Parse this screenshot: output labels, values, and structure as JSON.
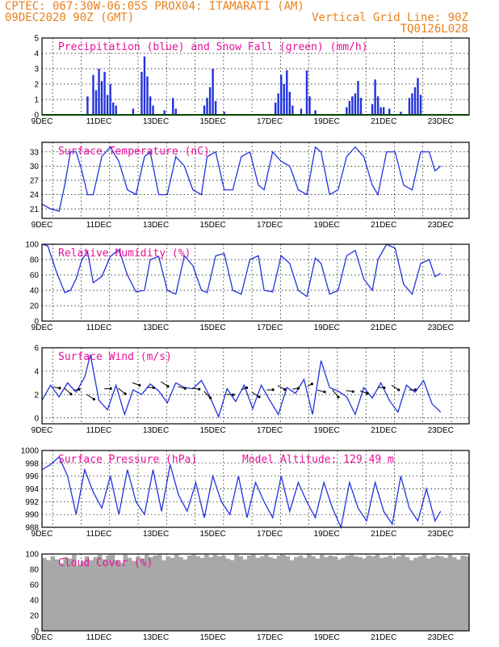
{
  "header": {
    "line1": "CPTEC:  067:30W-06:05S  PROX04: ITAMARATI (AM)",
    "line2_left": "09DEC2020 90Z (GMT)",
    "line2_right": "Vertical Grid Line: 90Z",
    "line3_right": "TQ0126L028"
  },
  "x_labels": [
    "9DEC",
    "11DEC",
    "13DEC",
    "15DEC",
    "17DEC",
    "19DEC",
    "21DEC",
    "23DEC"
  ],
  "colors": {
    "precip": "#2233dd",
    "snow": "#11aa11",
    "line": "#2233dd",
    "cloud": "#a8a8a8",
    "title": "#e8109a",
    "header": "#e8821e"
  },
  "chart_data": [
    {
      "type": "bar",
      "title": "Precipitation (blue) and Snow Fall (green) (mm/h)",
      "x_unit": "days since 9DEC 00Z",
      "ylim": [
        0,
        5
      ],
      "yticks": [
        0,
        1,
        2,
        3,
        4,
        5
      ],
      "series": [
        {
          "name": "Precipitation",
          "color": "#2233dd",
          "points": [
            [
              1.6,
              1.2
            ],
            [
              1.8,
              2.6
            ],
            [
              1.9,
              1.6
            ],
            [
              2.0,
              3.0
            ],
            [
              2.1,
              2.2
            ],
            [
              2.2,
              2.8
            ],
            [
              2.3,
              1.3
            ],
            [
              2.4,
              2.0
            ],
            [
              2.5,
              0.8
            ],
            [
              2.6,
              0.6
            ],
            [
              3.2,
              0.4
            ],
            [
              3.5,
              2.8
            ],
            [
              3.6,
              3.8
            ],
            [
              3.7,
              2.5
            ],
            [
              3.8,
              1.2
            ],
            [
              3.9,
              0.6
            ],
            [
              4.3,
              0.3
            ],
            [
              4.6,
              1.1
            ],
            [
              4.7,
              0.4
            ],
            [
              5.7,
              0.6
            ],
            [
              5.8,
              1.1
            ],
            [
              5.9,
              1.8
            ],
            [
              6.0,
              3.0
            ],
            [
              6.1,
              0.9
            ],
            [
              6.4,
              0.2
            ],
            [
              8.2,
              0.8
            ],
            [
              8.3,
              1.4
            ],
            [
              8.4,
              2.6
            ],
            [
              8.5,
              2.0
            ],
            [
              8.6,
              2.9
            ],
            [
              8.7,
              1.5
            ],
            [
              8.8,
              0.6
            ],
            [
              9.1,
              0.4
            ],
            [
              9.3,
              2.9
            ],
            [
              9.4,
              1.2
            ],
            [
              9.6,
              0.3
            ],
            [
              10.7,
              0.5
            ],
            [
              10.8,
              0.9
            ],
            [
              10.9,
              1.2
            ],
            [
              11.0,
              1.4
            ],
            [
              11.1,
              2.2
            ],
            [
              11.2,
              1.1
            ],
            [
              11.6,
              0.7
            ],
            [
              11.7,
              2.3
            ],
            [
              11.8,
              1.2
            ],
            [
              11.9,
              0.5
            ],
            [
              12.0,
              0.5
            ],
            [
              12.2,
              0.4
            ],
            [
              12.6,
              0.2
            ],
            [
              12.9,
              1.1
            ],
            [
              13.0,
              1.4
            ],
            [
              13.1,
              1.8
            ],
            [
              13.2,
              2.4
            ],
            [
              13.3,
              1.3
            ]
          ]
        },
        {
          "name": "Snow Fall",
          "color": "#11aa11",
          "points": []
        }
      ]
    },
    {
      "type": "line",
      "title": "Surface Temperature (nC)",
      "ylim": [
        19,
        35
      ],
      "yticks": [
        21,
        24,
        27,
        30,
        33
      ],
      "x": [
        0,
        0.3,
        0.6,
        0.8,
        1.0,
        1.2,
        1.4,
        1.6,
        1.8,
        2.1,
        2.4,
        2.7,
        3.0,
        3.3,
        3.6,
        3.8,
        4.1,
        4.4,
        4.7,
        5.0,
        5.3,
        5.6,
        5.8,
        6.1,
        6.4,
        6.7,
        7.0,
        7.3,
        7.6,
        7.8,
        8.1,
        8.4,
        8.7,
        9.0,
        9.3,
        9.6,
        9.8,
        10.1,
        10.4,
        10.7,
        11.0,
        11.3,
        11.6,
        11.8,
        12.1,
        12.4,
        12.7,
        13.0,
        13.3,
        13.6,
        13.8,
        14.0
      ],
      "values": [
        22,
        21,
        20.5,
        26,
        33,
        33,
        29,
        24,
        24,
        32,
        34,
        31,
        25,
        24,
        32,
        33,
        24,
        24,
        32,
        30,
        25,
        24,
        32,
        33,
        25,
        25,
        32,
        33,
        26,
        25,
        33,
        31,
        30,
        25,
        24,
        34,
        33,
        24,
        25,
        32,
        34,
        32,
        26,
        24,
        33,
        33,
        26,
        25,
        33,
        33,
        29,
        30
      ]
    },
    {
      "type": "line",
      "title": "Relative Humidity (%)",
      "ylim": [
        0,
        100
      ],
      "yticks": [
        0,
        20,
        40,
        60,
        80,
        100
      ],
      "x": [
        0,
        0.2,
        0.5,
        0.8,
        1.0,
        1.2,
        1.4,
        1.6,
        1.8,
        2.1,
        2.4,
        2.7,
        3.0,
        3.3,
        3.6,
        3.8,
        4.1,
        4.4,
        4.7,
        5.0,
        5.3,
        5.6,
        5.8,
        6.1,
        6.4,
        6.7,
        7.0,
        7.3,
        7.6,
        7.8,
        8.1,
        8.4,
        8.7,
        9.0,
        9.3,
        9.6,
        9.8,
        10.1,
        10.4,
        10.7,
        11.0,
        11.3,
        11.6,
        11.8,
        12.1,
        12.4,
        12.7,
        13.0,
        13.3,
        13.6,
        13.8,
        14.0
      ],
      "values": [
        100,
        98,
        65,
        37,
        40,
        55,
        80,
        90,
        50,
        58,
        84,
        93,
        60,
        38,
        40,
        80,
        84,
        40,
        35,
        85,
        72,
        40,
        37,
        85,
        88,
        40,
        35,
        80,
        85,
        40,
        38,
        85,
        75,
        40,
        32,
        82,
        75,
        35,
        40,
        85,
        92,
        55,
        40,
        80,
        100,
        95,
        48,
        35,
        75,
        80,
        58,
        62
      ]
    },
    {
      "type": "line",
      "title": "Surface Wind (m/s)",
      "ylim": [
        -0.5,
        6
      ],
      "yticks": [
        0,
        2,
        4,
        6
      ],
      "x": [
        0,
        0.3,
        0.6,
        0.9,
        1.2,
        1.5,
        1.7,
        2.0,
        2.3,
        2.6,
        2.9,
        3.2,
        3.5,
        3.8,
        4.1,
        4.4,
        4.7,
        5.0,
        5.3,
        5.6,
        5.9,
        6.2,
        6.5,
        6.8,
        7.1,
        7.4,
        7.7,
        8.0,
        8.3,
        8.6,
        8.9,
        9.2,
        9.5,
        9.8,
        10.1,
        10.4,
        10.7,
        11.0,
        11.3,
        11.6,
        11.9,
        12.2,
        12.5,
        12.8,
        13.1,
        13.4,
        13.7,
        14.0
      ],
      "values": [
        1.5,
        2.8,
        1.8,
        3.0,
        2.2,
        3.5,
        5.4,
        1.5,
        0.7,
        2.8,
        0.3,
        2.4,
        2.0,
        2.9,
        2.3,
        1.3,
        3.0,
        2.6,
        2.5,
        3.2,
        1.8,
        0.1,
        2.5,
        1.4,
        2.8,
        0.8,
        2.8,
        1.5,
        0.3,
        2.6,
        2.1,
        3.3,
        0.3,
        4.9,
        2.6,
        2.3,
        1.8,
        0.3,
        2.6,
        1.7,
        3.0,
        1.5,
        0.5,
        2.8,
        2.2,
        3.2,
        1.2,
        0.5
      ],
      "arrows": [
        [
          0.5,
          2.6,
          0.3
        ],
        [
          0.9,
          2.3,
          -0.4
        ],
        [
          1.2,
          2.4,
          0.6
        ],
        [
          1.7,
          1.8,
          -0.2
        ],
        [
          2.3,
          2.5,
          0.5
        ],
        [
          2.8,
          2.3,
          -0.3
        ],
        [
          3.3,
          2.9,
          0.1
        ],
        [
          3.8,
          2.6,
          0.4
        ],
        [
          4.3,
          2.9,
          -0.2
        ],
        [
          4.9,
          2.6,
          0.2
        ],
        [
          5.4,
          2.5,
          0.3
        ],
        [
          5.8,
          2.0,
          -0.5
        ],
        [
          6.6,
          2.0,
          0.4
        ],
        [
          7.1,
          2.5,
          0.8
        ],
        [
          7.5,
          2.0,
          -0.2
        ],
        [
          8.0,
          2.4,
          0.5
        ],
        [
          8.4,
          2.6,
          -0.1
        ],
        [
          8.9,
          2.5,
          0.6
        ],
        [
          9.4,
          2.8,
          0.9
        ],
        [
          9.8,
          2.3,
          0.2
        ],
        [
          10.3,
          2.1,
          -0.6
        ],
        [
          10.8,
          2.3,
          0.3
        ],
        [
          11.3,
          2.2,
          0.1
        ],
        [
          11.9,
          2.6,
          0.4
        ],
        [
          12.4,
          2.6,
          -0.2
        ],
        [
          13.0,
          2.4,
          0.5
        ]
      ]
    },
    {
      "type": "line",
      "title": "Surface Pressure (hPa)",
      "ylim": [
        988,
        1000
      ],
      "yticks": [
        988,
        990,
        992,
        994,
        996,
        998,
        1000
      ],
      "x": [
        0,
        0.3,
        0.6,
        0.9,
        1.2,
        1.5,
        1.8,
        2.1,
        2.4,
        2.7,
        3.0,
        3.3,
        3.6,
        3.9,
        4.2,
        4.5,
        4.8,
        5.1,
        5.4,
        5.7,
        6.0,
        6.3,
        6.6,
        6.9,
        7.2,
        7.5,
        7.8,
        8.1,
        8.4,
        8.7,
        9.0,
        9.3,
        9.6,
        9.9,
        10.2,
        10.5,
        10.8,
        11.1,
        11.4,
        11.7,
        12.0,
        12.3,
        12.6,
        12.9,
        13.2,
        13.5,
        13.8,
        14.0
      ],
      "values": [
        997,
        997.8,
        999,
        996,
        990,
        997,
        993.5,
        991,
        996,
        990,
        997,
        992,
        990,
        997,
        990.5,
        997.8,
        993,
        990.5,
        995,
        989.5,
        996,
        992,
        990,
        996,
        989.5,
        995,
        992,
        989.5,
        996,
        990.5,
        995,
        992,
        989.5,
        995,
        991,
        988,
        995,
        991,
        989,
        995,
        990.5,
        988.5,
        996,
        991,
        989,
        994,
        989,
        990.5
      ]
    },
    {
      "type": "bar",
      "title": "Cloud Cover (%)",
      "ylim": [
        0,
        100
      ],
      "yticks": [
        0,
        20,
        40,
        60,
        80,
        100
      ],
      "values": [
        95,
        92,
        97,
        93,
        88,
        96,
        94,
        99,
        85,
        90,
        97,
        92,
        96,
        99,
        93,
        98,
        99,
        92,
        88,
        99,
        95,
        91,
        97,
        94,
        99,
        96,
        98,
        99,
        92,
        97,
        95,
        99,
        96,
        93,
        98,
        99,
        97,
        95,
        99,
        96,
        99,
        97,
        98,
        94,
        92,
        99,
        97,
        93,
        98,
        99,
        95,
        97,
        99,
        96,
        94,
        98,
        99,
        97,
        92,
        96,
        98,
        95,
        99,
        97,
        94,
        99,
        96,
        98,
        97,
        93,
        95,
        98,
        99,
        97,
        96,
        94,
        98,
        97,
        99,
        95,
        96,
        98,
        94,
        97,
        99,
        96,
        92,
        95,
        97,
        99,
        94,
        96,
        98,
        97,
        95,
        99,
        96,
        93,
        98,
        97
      ]
    }
  ],
  "wind_title_extra": "",
  "pressure_extra": "Model Altitude: 129.49 m"
}
